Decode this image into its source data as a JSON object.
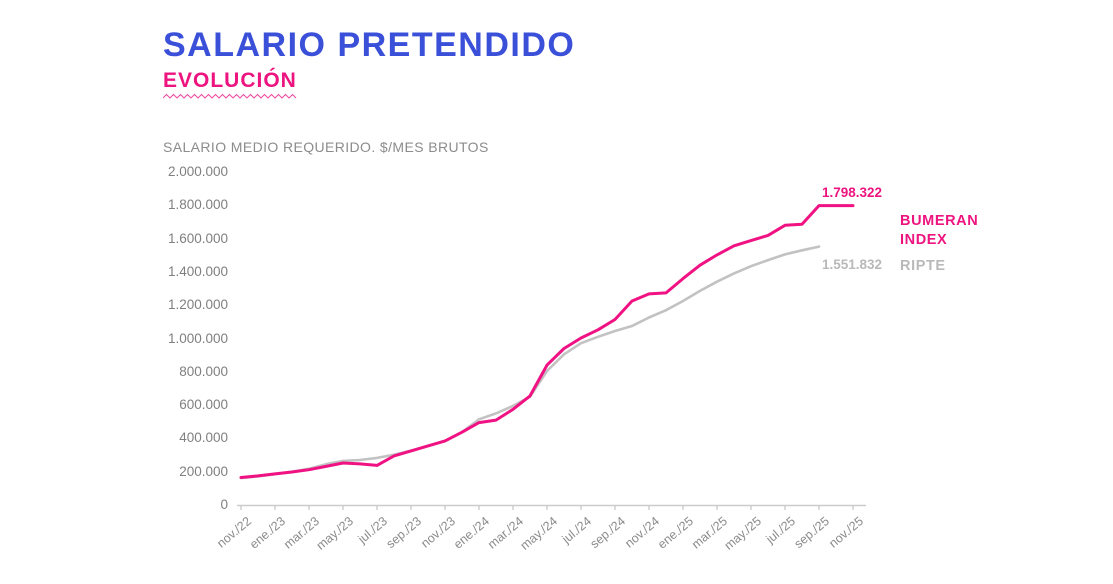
{
  "header": {
    "title": "SALARIO PRETENDIDO",
    "subtitle": "EVOLUCIÓN"
  },
  "chart": {
    "axis_title": "SALARIO MEDIO REQUERIDO. $/MES BRUTOS",
    "bumeran_value_label": "1.798.322",
    "ripte_value_label": "1.551.832",
    "legend_bumeran": "BUMERAN INDEX",
    "legend_ripte": "RIPTE"
  },
  "chart_data": {
    "type": "line",
    "title": "SALARIO PRETENDIDO — EVOLUCIÓN",
    "ylabel": "SALARIO MEDIO REQUERIDO. $/MES BRUTOS",
    "xlabel": "",
    "grid": false,
    "legend_position": "right",
    "ylim": [
      0,
      2000000
    ],
    "y_tick_labels": [
      "0",
      "200.000",
      "400.000",
      "600.000",
      "800.000",
      "1.000.000",
      "1.200.000",
      "1.400.000",
      "1.600.000",
      "1.800.000",
      "2.000.000"
    ],
    "x_tick_labels": [
      "nov./22",
      "ene./23",
      "mar./23",
      "may./23",
      "jul./23",
      "sep./23",
      "nov./23",
      "ene./24",
      "mar./24",
      "may./24",
      "jul./24",
      "sep./24",
      "nov./24",
      "ene./25",
      "mar./25",
      "may./25",
      "jul./25",
      "sep./25",
      "nov./25"
    ],
    "categories": [
      "nov./22",
      "dic./22",
      "ene./23",
      "feb./23",
      "mar./23",
      "abr./23",
      "may./23",
      "jun./23",
      "jul./23",
      "ago./23",
      "sep./23",
      "oct./23",
      "nov./23",
      "dic./23",
      "ene./24",
      "feb./24",
      "mar./24",
      "abr./24",
      "may./24",
      "jun./24",
      "jul./24",
      "ago./24",
      "sep./24",
      "oct./24",
      "nov./24",
      "dic./24",
      "ene./25",
      "feb./25",
      "mar./25",
      "abr./25",
      "may./25",
      "jun./25",
      "jul./25",
      "ago./25",
      "sep./25",
      "oct./25",
      "nov./25"
    ],
    "series": [
      {
        "name": "BUMERAN INDEX",
        "color": "#f01283",
        "end_label": "1.798.322",
        "values": [
          165000,
          175000,
          187000,
          198000,
          212000,
          232000,
          252000,
          247000,
          238000,
          295000,
          325000,
          355000,
          385000,
          437000,
          495000,
          510000,
          575000,
          655000,
          840000,
          940000,
          1003000,
          1052000,
          1114000,
          1225000,
          1268000,
          1274000,
          1360000,
          1440000,
          1502000,
          1557000,
          1588000,
          1619000,
          1680000,
          1686000,
          1798322,
          1798322,
          1798322
        ]
      },
      {
        "name": "RIPTE",
        "color": "#c2c2c2",
        "end_label": "1.551.832",
        "values": [
          161500,
          172000,
          185000,
          200000,
          218000,
          245000,
          265000,
          270000,
          283000,
          302000,
          326000,
          357000,
          383000,
          437000,
          515000,
          550000,
          595000,
          650000,
          805000,
          905000,
          972000,
          1010000,
          1045000,
          1075000,
          1126000,
          1170000,
          1225000,
          1286000,
          1341000,
          1391000,
          1434000,
          1471000,
          1505000,
          1530000,
          1551832,
          null,
          null
        ]
      }
    ]
  }
}
